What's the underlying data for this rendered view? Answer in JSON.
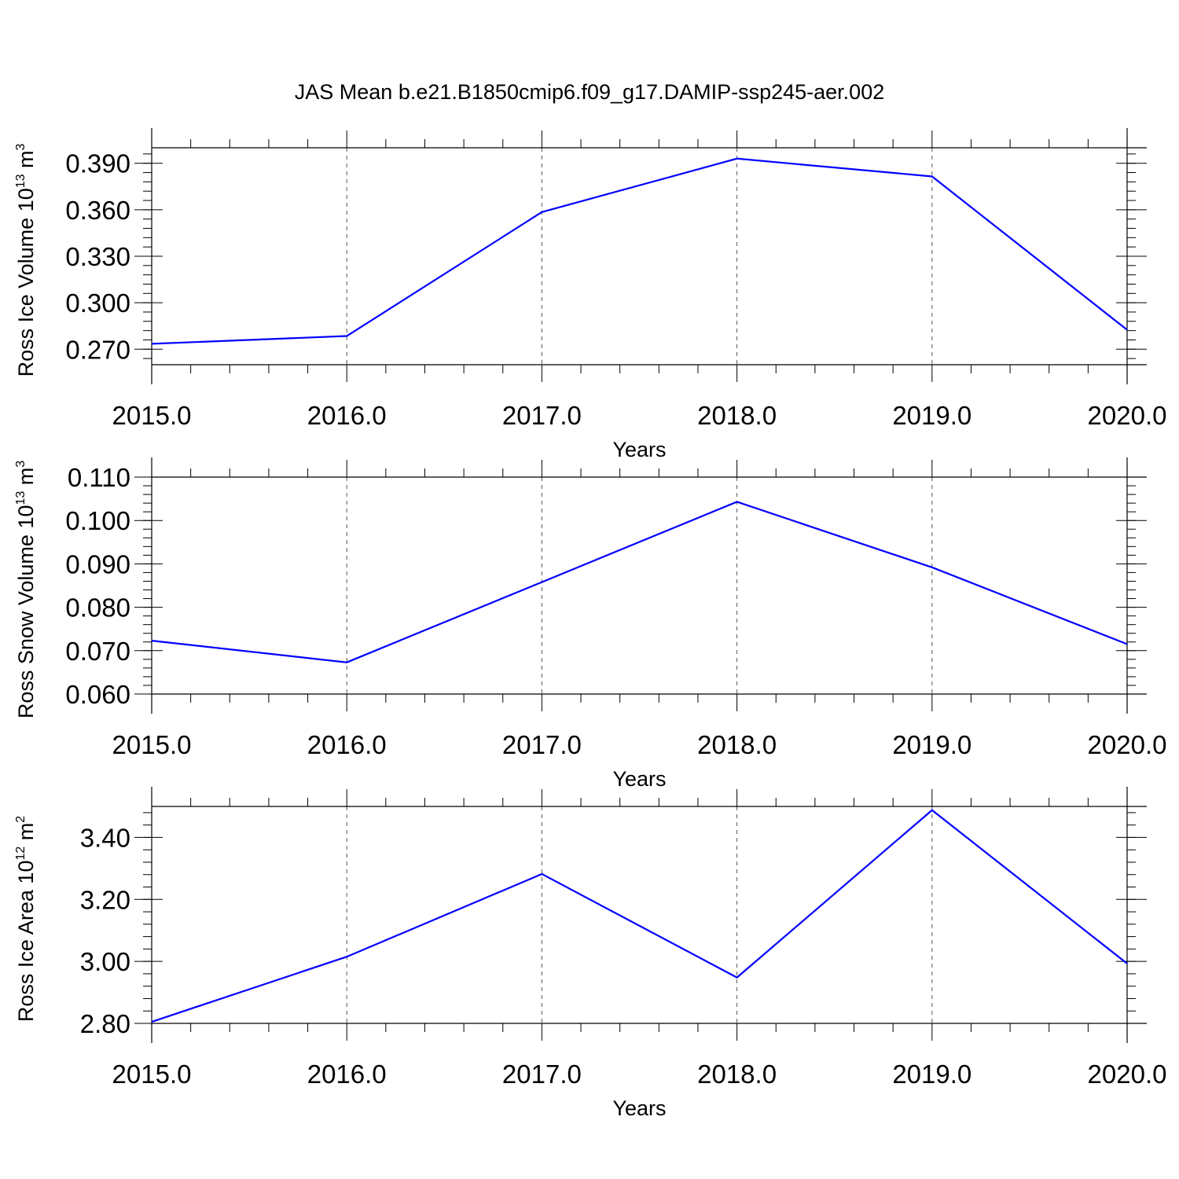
{
  "figure": {
    "title": "JAS Mean b.e21.B1850cmip6.f09_g17.DAMIP-ssp245-aer.002"
  },
  "chart_data": [
    {
      "type": "line",
      "title": "",
      "xlabel": "Years",
      "ylabel": "Ross Ice Volume 10",
      "ylabel_exponent": "13",
      "ylabel_unit": "m",
      "ylabel_unit_exponent": "3",
      "x": [
        2015,
        2016,
        2017,
        2018,
        2019,
        2020
      ],
      "x_tick_labels": [
        "2015.0",
        "2016.0",
        "2017.0",
        "2018.0",
        "2019.0",
        "2020.0"
      ],
      "y_tick_values": [
        0.27,
        0.3,
        0.33,
        0.36,
        0.39
      ],
      "y_tick_labels": [
        "0.270",
        "0.300",
        "0.330",
        "0.360",
        "0.390"
      ],
      "xlim": [
        2015,
        2020
      ],
      "ylim": [
        0.26,
        0.4
      ],
      "series": [
        {
          "values": [
            0.2735,
            0.2785,
            0.3585,
            0.393,
            0.3815,
            0.2825
          ],
          "color": "#0000ff"
        }
      ],
      "grid": "vertical dashed at major x ticks"
    },
    {
      "type": "line",
      "title": "",
      "xlabel": "Years",
      "ylabel": "Ross Snow Volume 10",
      "ylabel_exponent": "13",
      "ylabel_unit": "m",
      "ylabel_unit_exponent": "3",
      "x": [
        2015,
        2016,
        2017,
        2018,
        2019,
        2020
      ],
      "x_tick_labels": [
        "2015.0",
        "2016.0",
        "2017.0",
        "2018.0",
        "2019.0",
        "2020.0"
      ],
      "y_tick_values": [
        0.06,
        0.07,
        0.08,
        0.09,
        0.1,
        0.11
      ],
      "y_tick_labels": [
        "0.060",
        "0.070",
        "0.080",
        "0.090",
        "0.100",
        "0.110"
      ],
      "xlim": [
        2015,
        2020
      ],
      "ylim": [
        0.06,
        0.11
      ],
      "series": [
        {
          "values": [
            0.0723,
            0.0673,
            0.0858,
            0.1043,
            0.0892,
            0.0715
          ],
          "color": "#0000ff"
        }
      ],
      "grid": "vertical dashed at major x ticks"
    },
    {
      "type": "line",
      "title": "",
      "xlabel": "Years",
      "ylabel": "Ross Ice Area 10",
      "ylabel_exponent": "12",
      "ylabel_unit": "m",
      "ylabel_unit_exponent": "2",
      "x": [
        2015,
        2016,
        2017,
        2018,
        2019,
        2020
      ],
      "x_tick_labels": [
        "2015.0",
        "2016.0",
        "2017.0",
        "2018.0",
        "2019.0",
        "2020.0"
      ],
      "y_tick_values": [
        2.8,
        3.0,
        3.2,
        3.4
      ],
      "y_tick_labels": [
        "2.80",
        "3.00",
        "3.20",
        "3.40"
      ],
      "xlim": [
        2015,
        2020
      ],
      "ylim": [
        2.8,
        3.5
      ],
      "series": [
        {
          "values": [
            2.805,
            3.015,
            3.282,
            2.948,
            3.488,
            2.993
          ],
          "color": "#0000ff"
        }
      ],
      "grid": "vertical dashed at major x ticks"
    }
  ]
}
